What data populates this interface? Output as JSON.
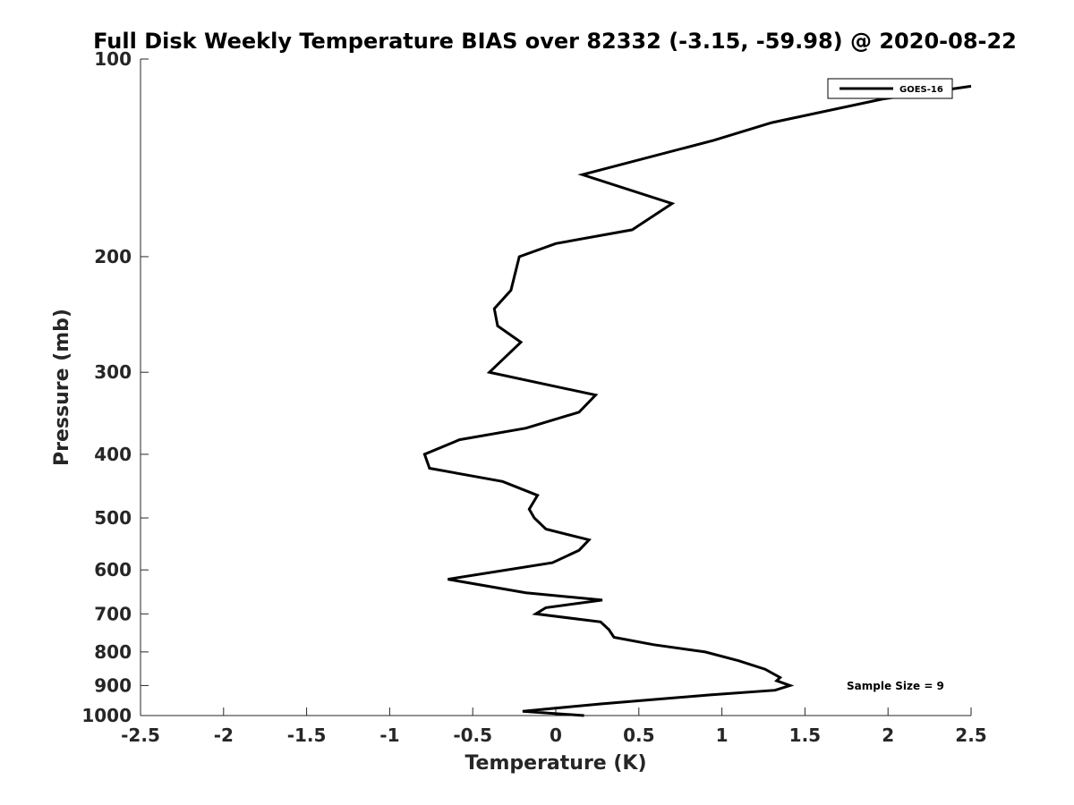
{
  "chart_data": {
    "type": "line",
    "title": "Full Disk Weekly Temperature BIAS over 82332 (-3.15, -59.98) @ 2020-08-22",
    "xlabel": "Temperature (K)",
    "ylabel": "Pressure (mb)",
    "xlim": [
      -2.5,
      2.5
    ],
    "ylim": [
      100,
      1000
    ],
    "y_scale": "log",
    "y_reversed": true,
    "x_ticks": [
      -2.5,
      -2,
      -1.5,
      -1,
      -0.5,
      0,
      0.5,
      1,
      1.5,
      2,
      2.5
    ],
    "x_tick_labels": [
      "-2.5",
      "-2",
      "-1.5",
      "-1",
      "-0.5",
      "0",
      "0.5",
      "1",
      "1.5",
      "2",
      "2.5"
    ],
    "y_ticks": [
      100,
      200,
      300,
      400,
      500,
      600,
      700,
      800,
      900,
      1000
    ],
    "y_tick_labels": [
      "100",
      "200",
      "300",
      "400",
      "500",
      "600",
      "700",
      "800",
      "900",
      "1000"
    ],
    "grid": false,
    "legend_position": "top-right",
    "annotation": "Sample Size = 9",
    "series": [
      {
        "name": "GOES-16",
        "color": "#000000",
        "points": [
          {
            "x": 2.5,
            "y": 110
          },
          {
            "x": 1.97,
            "y": 115
          },
          {
            "x": 1.3,
            "y": 125
          },
          {
            "x": 0.95,
            "y": 133
          },
          {
            "x": 0.16,
            "y": 150
          },
          {
            "x": 0.7,
            "y": 166
          },
          {
            "x": 0.46,
            "y": 182
          },
          {
            "x": 0.0,
            "y": 191
          },
          {
            "x": -0.22,
            "y": 200
          },
          {
            "x": -0.27,
            "y": 225
          },
          {
            "x": -0.37,
            "y": 240
          },
          {
            "x": -0.35,
            "y": 255
          },
          {
            "x": -0.21,
            "y": 270
          },
          {
            "x": -0.4,
            "y": 300
          },
          {
            "x": 0.24,
            "y": 325
          },
          {
            "x": 0.14,
            "y": 345
          },
          {
            "x": -0.18,
            "y": 365
          },
          {
            "x": -0.58,
            "y": 380
          },
          {
            "x": -0.79,
            "y": 400
          },
          {
            "x": -0.76,
            "y": 420
          },
          {
            "x": -0.32,
            "y": 440
          },
          {
            "x": -0.11,
            "y": 462
          },
          {
            "x": -0.16,
            "y": 485
          },
          {
            "x": -0.13,
            "y": 500
          },
          {
            "x": -0.06,
            "y": 520
          },
          {
            "x": 0.2,
            "y": 540
          },
          {
            "x": 0.14,
            "y": 560
          },
          {
            "x": -0.02,
            "y": 585
          },
          {
            "x": -0.65,
            "y": 620
          },
          {
            "x": -0.18,
            "y": 650
          },
          {
            "x": 0.28,
            "y": 667
          },
          {
            "x": -0.06,
            "y": 685
          },
          {
            "x": -0.12,
            "y": 700
          },
          {
            "x": 0.27,
            "y": 720
          },
          {
            "x": 0.32,
            "y": 740
          },
          {
            "x": 0.35,
            "y": 760
          },
          {
            "x": 0.59,
            "y": 780
          },
          {
            "x": 0.9,
            "y": 800
          },
          {
            "x": 1.1,
            "y": 825
          },
          {
            "x": 1.26,
            "y": 850
          },
          {
            "x": 1.35,
            "y": 875
          },
          {
            "x": 1.33,
            "y": 885
          },
          {
            "x": 1.41,
            "y": 900
          },
          {
            "x": 1.32,
            "y": 915
          },
          {
            "x": 0.93,
            "y": 930
          },
          {
            "x": 0.27,
            "y": 960
          },
          {
            "x": -0.01,
            "y": 975
          },
          {
            "x": -0.2,
            "y": 985
          },
          {
            "x": 0.17,
            "y": 1000
          }
        ]
      }
    ]
  }
}
